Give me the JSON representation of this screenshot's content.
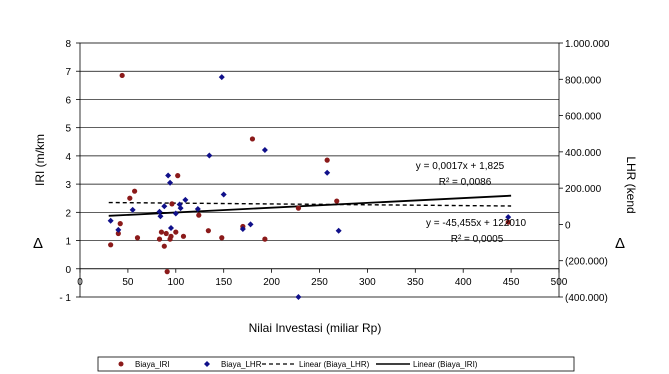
{
  "chart_data": {
    "type": "scatter",
    "xlabel": "Nilai Investasi (miliar Rp)",
    "ylabel": "IRI (m/km",
    "y2label": "LHR (kend",
    "delta_symbol": "Δ",
    "xlim": [
      0,
      500
    ],
    "ylim": [
      -1,
      8
    ],
    "y2lim": [
      -400000,
      1000000
    ],
    "x_ticks": [
      0,
      50,
      100,
      150,
      200,
      250,
      300,
      350,
      400,
      450,
      500
    ],
    "y_ticks": [
      -1,
      0,
      1,
      2,
      3,
      4,
      5,
      6,
      7,
      8
    ],
    "y2_ticks": [
      -400000,
      -200000,
      0,
      200000,
      400000,
      600000,
      800000,
      1000000
    ],
    "x_tick_labels": [
      "0",
      "50",
      "100",
      "150",
      "200",
      "250",
      "300",
      "350",
      "400",
      "450",
      "500"
    ],
    "y_tick_labels": [
      "- 1",
      "0",
      "1",
      "2",
      "3",
      "4",
      "5",
      "6",
      "7",
      "8"
    ],
    "y2_tick_labels": [
      "(400.000)",
      "(200.000)",
      "0",
      "200.000",
      "400.000",
      "600.000",
      "800.000",
      "1.000.000"
    ],
    "grid": "horizontal",
    "legend_position": "bottom",
    "colors": {
      "iri": "#8b1a1a",
      "lhr": "#10108a",
      "line": "#000000"
    },
    "series": [
      {
        "name": "Biaya_IRI",
        "marker": "circle",
        "axis": "left",
        "points": [
          [
            32,
            0.85
          ],
          [
            40,
            1.25
          ],
          [
            42,
            1.6
          ],
          [
            44,
            6.85
          ],
          [
            52,
            2.5
          ],
          [
            57,
            2.75
          ],
          [
            60,
            1.1
          ],
          [
            83,
            1.05
          ],
          [
            85,
            1.3
          ],
          [
            88,
            0.8
          ],
          [
            90,
            1.25
          ],
          [
            91,
            -0.1
          ],
          [
            94,
            1.05
          ],
          [
            95,
            1.15
          ],
          [
            96,
            2.3
          ],
          [
            100,
            1.3
          ],
          [
            102,
            3.3
          ],
          [
            108,
            1.15
          ],
          [
            124,
            1.9
          ],
          [
            134,
            1.35
          ],
          [
            148,
            1.1
          ],
          [
            170,
            1.5
          ],
          [
            180,
            4.6
          ],
          [
            193,
            1.05
          ],
          [
            228,
            2.15
          ],
          [
            258,
            3.85
          ],
          [
            268,
            2.4
          ],
          [
            447,
            1.65
          ]
        ]
      },
      {
        "name": "Biaya_LHR",
        "marker": "diamond",
        "axis": "right",
        "points": [
          [
            32,
            20000
          ],
          [
            40,
            -30000
          ],
          [
            55,
            80000
          ],
          [
            83,
            70000
          ],
          [
            84,
            45000
          ],
          [
            88,
            100000
          ],
          [
            92,
            270000
          ],
          [
            94,
            230000
          ],
          [
            95,
            -20000
          ],
          [
            100,
            60000
          ],
          [
            104,
            110000
          ],
          [
            105,
            90000
          ],
          [
            110,
            135000
          ],
          [
            123,
            85000
          ],
          [
            135,
            380000
          ],
          [
            148,
            812000
          ],
          [
            150,
            165000
          ],
          [
            170,
            -25000
          ],
          [
            178,
            0
          ],
          [
            193,
            410000
          ],
          [
            228,
            -400000
          ],
          [
            258,
            285000
          ],
          [
            270,
            -35000
          ],
          [
            447,
            40000
          ]
        ]
      }
    ],
    "trendlines": [
      {
        "name": "Linear (Biaya_LHR)",
        "axis": "right",
        "style": "dashed",
        "slope": -45.455,
        "intercept": 122010,
        "x_range": [
          30,
          450
        ]
      },
      {
        "name": "Linear (Biaya_IRI)",
        "axis": "left",
        "style": "solid",
        "slope": 0.0017,
        "intercept": 1.825,
        "x_range": [
          30,
          450
        ]
      }
    ],
    "annotations": [
      {
        "text": "y = 0,0017x + 1,825",
        "near": "iri-trendline"
      },
      {
        "text": "R² = 0,0086",
        "near": "iri-trendline"
      },
      {
        "text": "y = -45,455x + 122010",
        "near": "lhr-trendline"
      },
      {
        "text": "R² = 0,0005",
        "near": "lhr-trendline"
      }
    ],
    "legend": [
      "Biaya_IRI",
      "Biaya_LHR",
      "Linear (Biaya_LHR)",
      "Linear (Biaya_IRI)"
    ]
  }
}
